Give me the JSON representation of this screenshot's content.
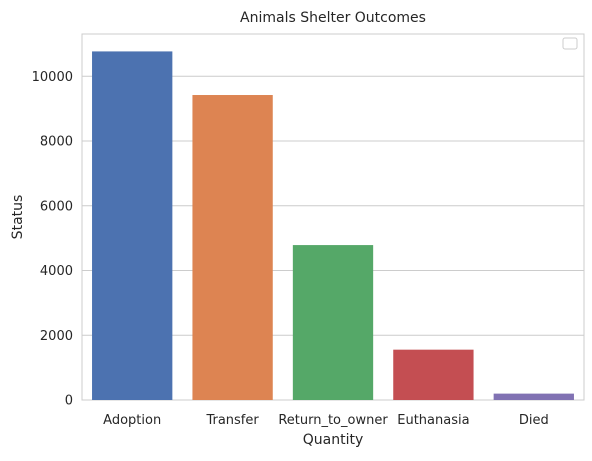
{
  "chart_data": {
    "type": "bar",
    "title": "Animals Shelter Outcomes",
    "xlabel": "Quantity",
    "ylabel": "Status",
    "categories": [
      "Adoption",
      "Transfer",
      "Return_to_owner",
      "Euthanasia",
      "Died"
    ],
    "values": [
      10769,
      9422,
      4786,
      1555,
      197
    ],
    "colors": [
      "#4c72b0",
      "#dd8452",
      "#55a868",
      "#c44e52",
      "#8172b3"
    ],
    "yticks": [
      0,
      2000,
      4000,
      6000,
      8000,
      10000
    ],
    "ylim": [
      0,
      11307
    ],
    "grid": true,
    "legend": {
      "position": "upper right",
      "entries": []
    }
  }
}
